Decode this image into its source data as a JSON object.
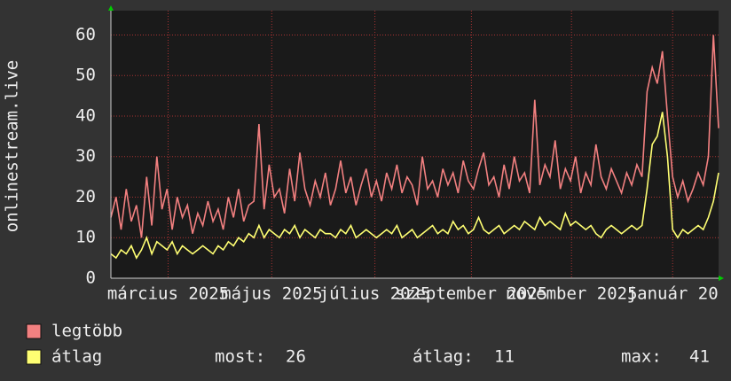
{
  "chart_data": {
    "type": "line",
    "y_label": "onlinestream.live",
    "ylim": [
      0,
      66
    ],
    "yticks": [
      0,
      10,
      20,
      30,
      40,
      50,
      60
    ],
    "grid": true,
    "xlim": [
      0,
      119
    ],
    "xticks": [
      {
        "value": 11.2,
        "label": "március 2025"
      },
      {
        "value": 31.5,
        "label": "május 2025"
      },
      {
        "value": 51.7,
        "label": "július 2025"
      },
      {
        "value": 70.6,
        "label": "szeptember 2025"
      },
      {
        "value": 90.2,
        "label": "november 2025"
      },
      {
        "value": 110,
        "label": "január 20"
      }
    ],
    "series": [
      {
        "name": "legtöbb",
        "color": "#f28080",
        "values": [
          15,
          20,
          12,
          22,
          14,
          18,
          10,
          25,
          13,
          30,
          17,
          22,
          12,
          20,
          15,
          18,
          11,
          16,
          13,
          19,
          14,
          17,
          12,
          20,
          15,
          22,
          14,
          18,
          19,
          38,
          17,
          28,
          20,
          22,
          16,
          27,
          19,
          31,
          22,
          18,
          24,
          20,
          26,
          18,
          22,
          29,
          21,
          25,
          18,
          23,
          27,
          20,
          24,
          19,
          26,
          22,
          28,
          21,
          25,
          23,
          18,
          30,
          22,
          24,
          20,
          27,
          23,
          26,
          21,
          29,
          24,
          22,
          27,
          31,
          23,
          25,
          20,
          28,
          22,
          30,
          24,
          26,
          21,
          44,
          23,
          28,
          25,
          34,
          22,
          27,
          24,
          30,
          21,
          26,
          23,
          33,
          25,
          22,
          27,
          24,
          21,
          26,
          23,
          28,
          25,
          46,
          52,
          48,
          56,
          40,
          25,
          20,
          24,
          19,
          22,
          26,
          23,
          30,
          60,
          37
        ]
      },
      {
        "name": "átlag",
        "color": "#ffff73",
        "values": [
          6,
          5,
          7,
          6,
          8,
          5,
          7,
          10,
          6,
          9,
          8,
          7,
          9,
          6,
          8,
          7,
          6,
          7,
          8,
          7,
          6,
          8,
          7,
          9,
          8,
          10,
          9,
          11,
          10,
          13,
          10,
          12,
          11,
          10,
          12,
          11,
          13,
          10,
          12,
          11,
          10,
          12,
          11,
          11,
          10,
          12,
          11,
          13,
          10,
          11,
          12,
          11,
          10,
          11,
          12,
          11,
          13,
          10,
          11,
          12,
          10,
          11,
          12,
          13,
          11,
          12,
          11,
          14,
          12,
          13,
          11,
          12,
          15,
          12,
          11,
          12,
          13,
          11,
          12,
          13,
          12,
          14,
          13,
          12,
          15,
          13,
          14,
          13,
          12,
          16,
          13,
          14,
          13,
          12,
          13,
          11,
          10,
          12,
          13,
          12,
          11,
          12,
          13,
          12,
          13,
          22,
          33,
          35,
          41,
          30,
          12,
          10,
          12,
          11,
          12,
          13,
          12,
          15,
          19,
          26
        ]
      }
    ],
    "stats": [
      {
        "label": "most:",
        "value": 26
      },
      {
        "label": "átlag:",
        "value": 11
      },
      {
        "label": "max:",
        "value": 41
      }
    ]
  }
}
